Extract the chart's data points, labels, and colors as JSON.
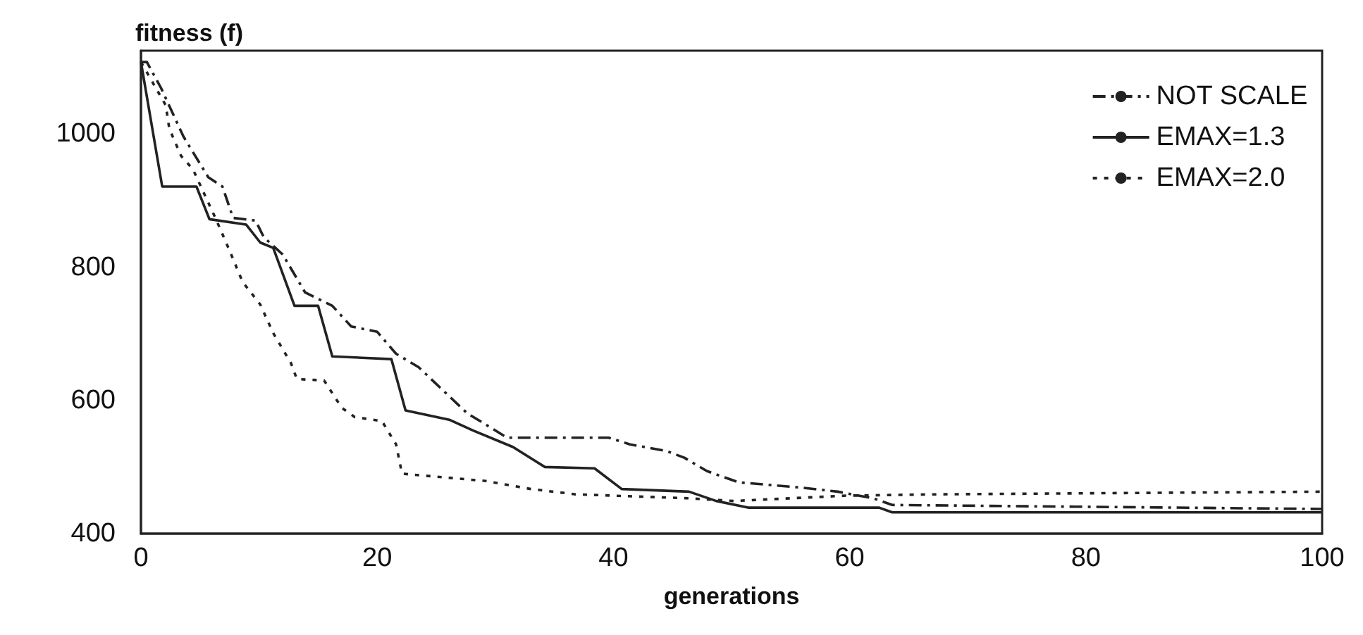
{
  "chart_data": {
    "type": "line",
    "ylabel": "fitness (f)",
    "xlabel": "generations",
    "xlim": [
      0,
      100
    ],
    "xticks": [
      0,
      20,
      40,
      60,
      80,
      100
    ],
    "ylim": [
      400,
      1125
    ],
    "yticks": [
      400,
      600,
      800,
      1000
    ],
    "grid": false,
    "legend": "top right",
    "marker": "none",
    "series": [
      {
        "name": "NOT SCALE",
        "color": "#222222",
        "line_style": "dashed",
        "x": [
          0,
          0.5,
          1.7,
          3.6,
          5.7,
          6.9,
          7.8,
          9.7,
          10.4,
          12,
          13.9,
          16.2,
          17.8,
          20,
          21.6,
          23.5,
          27.6,
          31,
          39.6,
          41.4,
          44.5,
          46,
          47.9,
          50.6,
          56,
          59,
          62,
          63.6,
          100
        ],
        "values": [
          1108,
          1108,
          1069,
          996,
          935,
          921,
          874,
          870,
          845,
          819,
          762,
          742,
          711,
          703,
          670,
          650,
          581,
          544,
          544,
          534,
          524,
          514,
          494,
          477,
          469,
          463,
          453,
          443,
          437
        ]
      },
      {
        "name": "EMAX=1.3",
        "color": "#222222",
        "line_style": "solid",
        "x": [
          0,
          1.8,
          4.7,
          5.8,
          8.9,
          10.1,
          11.2,
          13,
          15,
          16.2,
          21.2,
          22.4,
          26.1,
          28.1,
          31.5,
          34.2,
          38.4,
          40.7,
          46.4,
          48.7,
          51.4,
          62.5,
          63.6,
          100
        ],
        "values": [
          1108,
          921,
          921,
          872,
          864,
          837,
          829,
          742,
          742,
          666,
          662,
          585,
          571,
          555,
          530,
          500,
          498,
          467,
          463,
          449,
          439,
          439,
          432,
          432
        ]
      },
      {
        "name": "EMAX=2.0",
        "color": "#222222",
        "line_style": "dotted",
        "x": [
          0,
          2.1,
          2.4,
          3.4,
          4.4,
          6.3,
          7.5,
          8.6,
          10.1,
          11.2,
          12.7,
          13.2,
          15.5,
          17,
          18.1,
          20.4,
          21.6,
          22.1,
          29.2,
          33,
          36.8,
          46.4,
          50.2,
          59.7,
          67.4,
          100
        ],
        "values": [
          1108,
          1043,
          1008,
          967,
          947,
          874,
          825,
          778,
          744,
          701,
          656,
          632,
          630,
          589,
          575,
          569,
          534,
          490,
          479,
          467,
          459,
          453,
          449,
          457,
          459,
          463
        ]
      }
    ]
  }
}
